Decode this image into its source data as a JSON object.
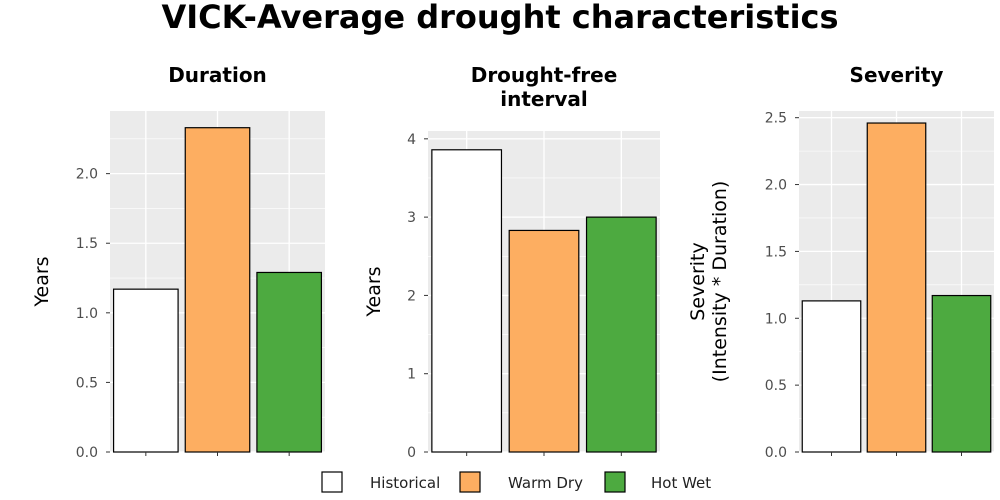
{
  "main_title": "VICK-Average drought characteristics",
  "chart_data": [
    {
      "type": "bar",
      "title": "Duration",
      "ylabel": "Years",
      "ylim": [
        0,
        2.45
      ],
      "yticks": [
        0.0,
        0.5,
        1.0,
        1.5,
        2.0
      ],
      "ytick_labels": [
        "0.0",
        "0.5",
        "1.0",
        "1.5",
        "2.0"
      ],
      "categories": [
        "Historical",
        "Warm Dry",
        "Hot Wet"
      ],
      "values": [
        1.17,
        2.33,
        1.29
      ],
      "grid": true
    },
    {
      "type": "bar",
      "title": "Drought-free interval",
      "title_lines": [
        "Drought-free",
        "interval"
      ],
      "ylabel": "Years",
      "ylim": [
        0,
        4.1
      ],
      "yticks": [
        0,
        1,
        2,
        3,
        4
      ],
      "ytick_labels": [
        "0",
        "1",
        "2",
        "3",
        "4"
      ],
      "categories": [
        "Historical",
        "Warm Dry",
        "Hot Wet"
      ],
      "values": [
        3.86,
        2.83,
        3.0
      ],
      "grid": true
    },
    {
      "type": "bar",
      "title": "Severity",
      "ylabel": "Severity (Intensity * Duration)",
      "ylabel_lines": [
        "Severity",
        "(Intensity * Duration)"
      ],
      "ylim": [
        0,
        2.55
      ],
      "yticks": [
        0.0,
        0.5,
        1.0,
        1.5,
        2.0,
        2.5
      ],
      "ytick_labels": [
        "0.0",
        "0.5",
        "1.0",
        "1.5",
        "2.0",
        "2.5"
      ],
      "categories": [
        "Historical",
        "Warm Dry",
        "Hot Wet"
      ],
      "values": [
        1.13,
        2.46,
        1.17
      ],
      "grid": true
    }
  ],
  "legend": {
    "placement": "bottom",
    "items": [
      {
        "label": "Historical",
        "color": "#ffffff"
      },
      {
        "label": "Warm Dry",
        "color": "#fdae61"
      },
      {
        "label": "Hot Wet",
        "color": "#4daa40"
      }
    ]
  },
  "colors": {
    "panel_bg": "#ebebeb",
    "grid": "#ffffff",
    "bar_outline": "#000000",
    "tick_text": "#4d4d4d"
  }
}
